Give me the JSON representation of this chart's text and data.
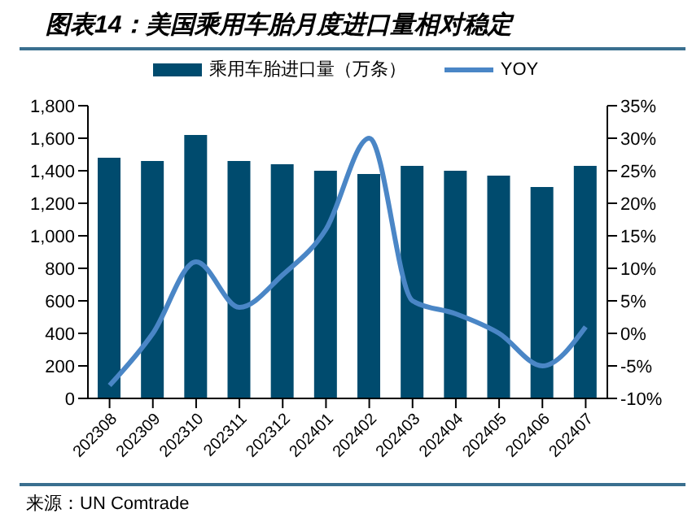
{
  "chart_data": {
    "type": "bar",
    "title": "图表14：美国乘用车胎月度进口量相对稳定",
    "categories": [
      "202308",
      "202309",
      "202310",
      "202311",
      "202312",
      "202401",
      "202402",
      "202403",
      "202404",
      "202405",
      "202406",
      "202407"
    ],
    "series": [
      {
        "name": "乘用车胎进口量（万条）",
        "color": "#004b6e",
        "values": [
          1480,
          1460,
          1620,
          1460,
          1440,
          1400,
          1380,
          1430,
          1400,
          1370,
          1300,
          1430
        ]
      },
      {
        "name": "YOY",
        "type": "line",
        "axis": "y2",
        "color": "#4a86c6",
        "values": [
          -8,
          0,
          11,
          4,
          9,
          16,
          30,
          5,
          3,
          0,
          -5,
          1
        ]
      }
    ],
    "ylim": [
      0,
      1800
    ],
    "yticks": [
      {
        "value": 0,
        "label": "0"
      },
      {
        "value": 200,
        "label": "200"
      },
      {
        "value": 400,
        "label": "400"
      },
      {
        "value": 600,
        "label": "600"
      },
      {
        "value": 800,
        "label": "800"
      },
      {
        "value": 1000,
        "label": "1,000"
      },
      {
        "value": 1200,
        "label": "1,200"
      },
      {
        "value": 1400,
        "label": "1,400"
      },
      {
        "value": 1600,
        "label": "1,600"
      },
      {
        "value": 1800,
        "label": "1,800"
      }
    ],
    "y2lim": [
      -10,
      35
    ],
    "y2ticks": [
      {
        "value": -10,
        "label": "-10%"
      },
      {
        "value": -5,
        "label": "-5%"
      },
      {
        "value": 0,
        "label": "0%"
      },
      {
        "value": 5,
        "label": "5%"
      },
      {
        "value": 10,
        "label": "10%"
      },
      {
        "value": 15,
        "label": "15%"
      },
      {
        "value": 20,
        "label": "20%"
      },
      {
        "value": 25,
        "label": "25%"
      },
      {
        "value": 30,
        "label": "30%"
      },
      {
        "value": 35,
        "label": "35%"
      }
    ],
    "legend": "top",
    "marker": "none",
    "annotations": [
      "来源：UN Comtrade"
    ]
  }
}
